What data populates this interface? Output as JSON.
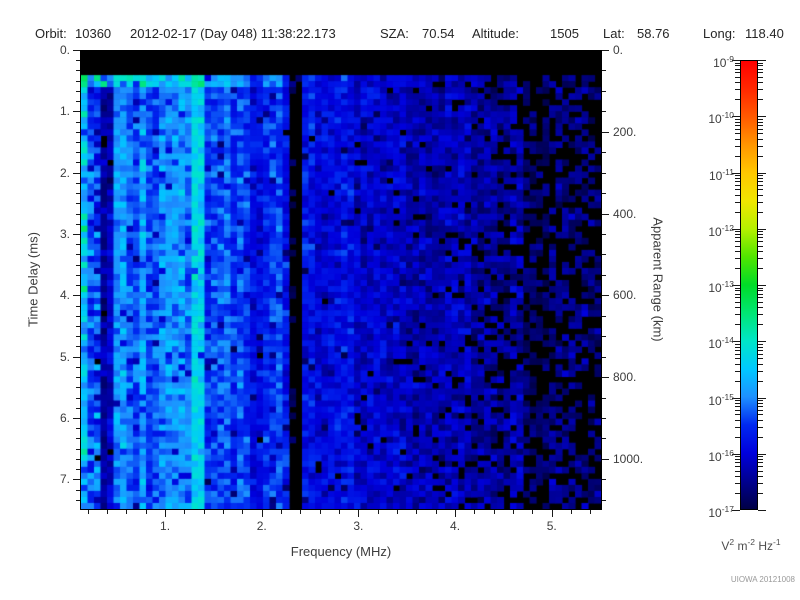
{
  "header": {
    "orbit_label": "Orbit:",
    "orbit_value": "10360",
    "datetime": "2012-02-17 (Day 048) 11:38:22.173",
    "sza_label": "SZA:",
    "sza_value": "70.54",
    "altitude_label": "Altitude:",
    "altitude_value": "1505",
    "lat_label": "Lat:",
    "lat_value": "58.76",
    "long_label": "Long:",
    "long_value": "118.40"
  },
  "credit": "UIOWA 20121008",
  "chart_data": {
    "type": "heatmap",
    "description": "Radar sounder ionogram spectrogram: received spectral density vs frequency and time delay",
    "x_axis": {
      "label": "Frequency (MHz)",
      "min": 0.12,
      "max": 5.52,
      "major_ticks": [
        1,
        2,
        3,
        4,
        5
      ],
      "major_tick_labels": [
        "1.",
        "2.",
        "3.",
        "4.",
        "5."
      ],
      "minor_tick_step_mhz": 0.2
    },
    "y_axis_left": {
      "label": "Time Delay (ms)",
      "min": 0,
      "max": 7.5,
      "direction": "down",
      "major_ticks": [
        0,
        1,
        2,
        3,
        4,
        5,
        6,
        7
      ],
      "major_tick_labels": [
        "0.",
        "1.",
        "2.",
        "3.",
        "4.",
        "5.",
        "6.",
        "7."
      ],
      "minor_ticks_per_major": 6
    },
    "y_axis_right": {
      "label": "Apparent Range (km)",
      "min": 0,
      "max": 1125,
      "direction": "down",
      "major_ticks": [
        0,
        200,
        400,
        600,
        800,
        1000
      ],
      "major_tick_labels": [
        "0.",
        "200.",
        "400.",
        "600.",
        "800.",
        "1000."
      ],
      "minor_tick_step_km": 50
    },
    "colorbar": {
      "scale": "log",
      "base": "10",
      "max_exponent": -9,
      "min_exponent": -17,
      "exponent_labels": [
        "-9",
        "-10",
        "-11",
        "-12",
        "-13",
        "-14",
        "-15",
        "-16",
        "-17"
      ],
      "units_parts": [
        [
          "V",
          "2"
        ],
        [
          "m",
          "-2"
        ],
        [
          "Hz",
          "-1"
        ]
      ],
      "stops": [
        [
          0,
          "#000046"
        ],
        [
          0.0625,
          "#000090"
        ],
        [
          0.125,
          "#0000DC"
        ],
        [
          0.1875,
          "#0028F0"
        ],
        [
          0.25,
          "#1E90FF"
        ],
        [
          0.3125,
          "#00C8FF"
        ],
        [
          0.375,
          "#00E6C8"
        ],
        [
          0.4375,
          "#00E673"
        ],
        [
          0.5,
          "#00DC28"
        ],
        [
          0.5625,
          "#50E600"
        ],
        [
          0.625,
          "#B4F000"
        ],
        [
          0.6875,
          "#F0E600"
        ],
        [
          0.75,
          "#FFC800"
        ],
        [
          0.8125,
          "#FF9600"
        ],
        [
          0.875,
          "#FF5A00"
        ],
        [
          0.9375,
          "#FF2800"
        ],
        [
          1,
          "#FF0000"
        ]
      ]
    },
    "spectrogram_features": {
      "transmit_gap_time_ms": [
        0,
        0.42
      ],
      "surface_echo_row": {
        "time_ms": [
          0.42,
          0.56
        ],
        "max_freq_mhz": 3.2
      },
      "vertical_bands": [
        {
          "freq_mhz": [
            0.12,
            0.18
          ],
          "delta_log10": 0.5
        },
        {
          "freq_mhz": [
            0.33,
            0.45
          ],
          "delta_log10": -1.1
        },
        {
          "freq_mhz": [
            0.5,
            0.58
          ],
          "delta_log10": 0.45
        },
        {
          "freq_mhz": [
            0.72,
            0.78
          ],
          "delta_log10": 0.35
        },
        {
          "freq_mhz": [
            1.28,
            1.37
          ],
          "delta_log10": 0.8
        },
        {
          "freq_mhz": [
            1.55,
            1.61
          ],
          "delta_log10": 0.3
        },
        {
          "freq_mhz": [
            2.31,
            2.43
          ],
          "delta_log10": -1.5
        },
        {
          "freq_mhz": [
            4.72,
            4.95
          ],
          "delta_log10": -0.45
        }
      ],
      "noise_floor_log10_by_freq": [
        [
          0.12,
          -15.0
        ],
        [
          1.5,
          -15.25
        ],
        [
          2.5,
          -15.9
        ],
        [
          3.5,
          -16.1
        ],
        [
          4.3,
          -16.35
        ],
        [
          5.52,
          -16.6
        ]
      ],
      "dropout_onset_mhz": 3.6,
      "grid_cols": 80,
      "grid_rows": 76,
      "seed": 20121008
    }
  }
}
